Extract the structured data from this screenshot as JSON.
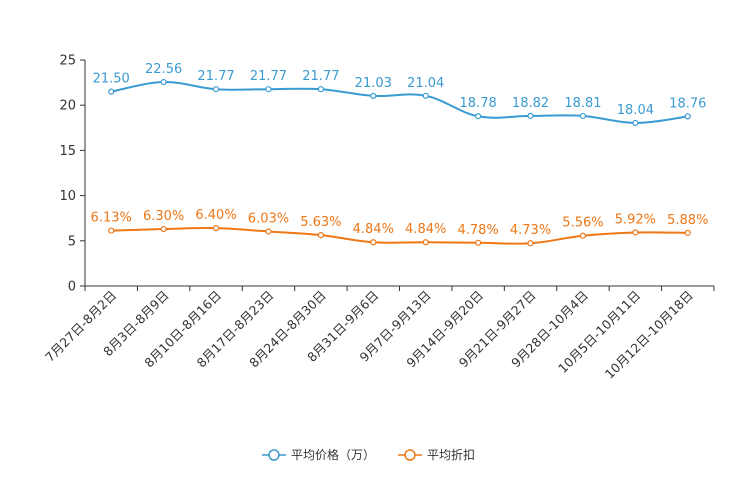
{
  "chart_data": {
    "type": "line",
    "categories": [
      "7月27日-8月2日",
      "8月3日-8月9日",
      "8月10日-8月16日",
      "8月17日-8月23日",
      "8月24日-8月30日",
      "8月31日-9月6日",
      "9月7日-9月13日",
      "9月14日-9月20日",
      "9月21日-9月27日",
      "9月28日-10月4日",
      "10月5日-10月11日",
      "10月12日-10月18日"
    ],
    "ylim": [
      0,
      25
    ],
    "yticks": [
      "0",
      "5",
      "10",
      "15",
      "20",
      "25"
    ],
    "series": [
      {
        "name": "平均价格（万）",
        "color": "#3a9bd2",
        "values": [
          21.5,
          22.56,
          21.77,
          21.77,
          21.77,
          21.03,
          21.04,
          18.78,
          18.82,
          18.81,
          18.04,
          18.76
        ],
        "labels": [
          "21.50",
          "22.56",
          "21.77",
          "21.77",
          "21.77",
          "21.03",
          "21.04",
          "18.78",
          "18.82",
          "18.81",
          "18.04",
          "18.76"
        ]
      },
      {
        "name": "平均折扣",
        "color": "#ee7716",
        "values": [
          6.13,
          6.3,
          6.4,
          6.03,
          5.63,
          4.84,
          4.84,
          4.78,
          4.73,
          5.56,
          5.92,
          5.88
        ],
        "labels": [
          "6.13%",
          "6.30%",
          "6.40%",
          "6.03%",
          "5.63%",
          "4.84%",
          "4.84%",
          "4.78%",
          "4.73%",
          "5.56%",
          "5.92%",
          "5.88%"
        ]
      }
    ],
    "legend_position": "bottom-center"
  }
}
